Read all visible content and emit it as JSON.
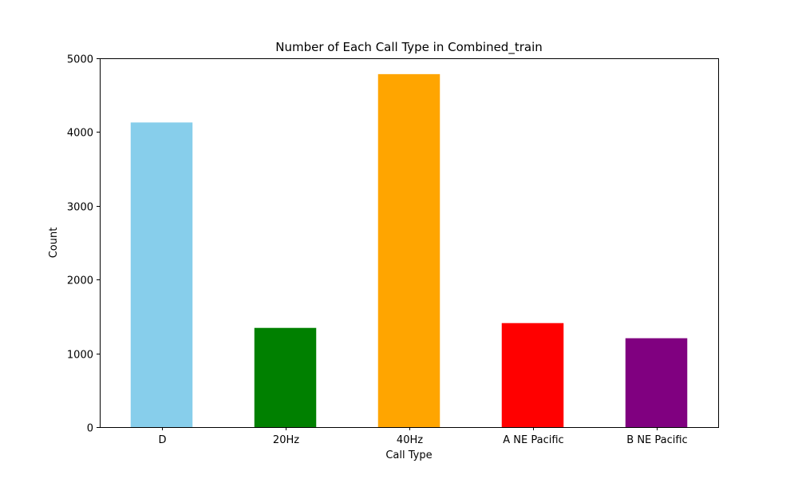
{
  "chart_data": {
    "type": "bar",
    "title": "Number of Each Call Type in Combined_train",
    "xlabel": "Call Type",
    "ylabel": "Count",
    "categories": [
      "D",
      "20Hz",
      "40Hz",
      "A NE Pacific",
      "B NE Pacific"
    ],
    "values": [
      4130,
      1345,
      4785,
      1410,
      1205
    ],
    "colors": [
      "#87ceeb",
      "#008000",
      "#ffa500",
      "#ff0000",
      "#800080"
    ],
    "ylim": [
      0,
      5000
    ],
    "yticks": [
      0,
      1000,
      2000,
      3000,
      4000,
      5000
    ],
    "ytick_labels": [
      "0",
      "1000",
      "2000",
      "3000",
      "4000",
      "5000"
    ],
    "grid": false,
    "legend": "none"
  }
}
